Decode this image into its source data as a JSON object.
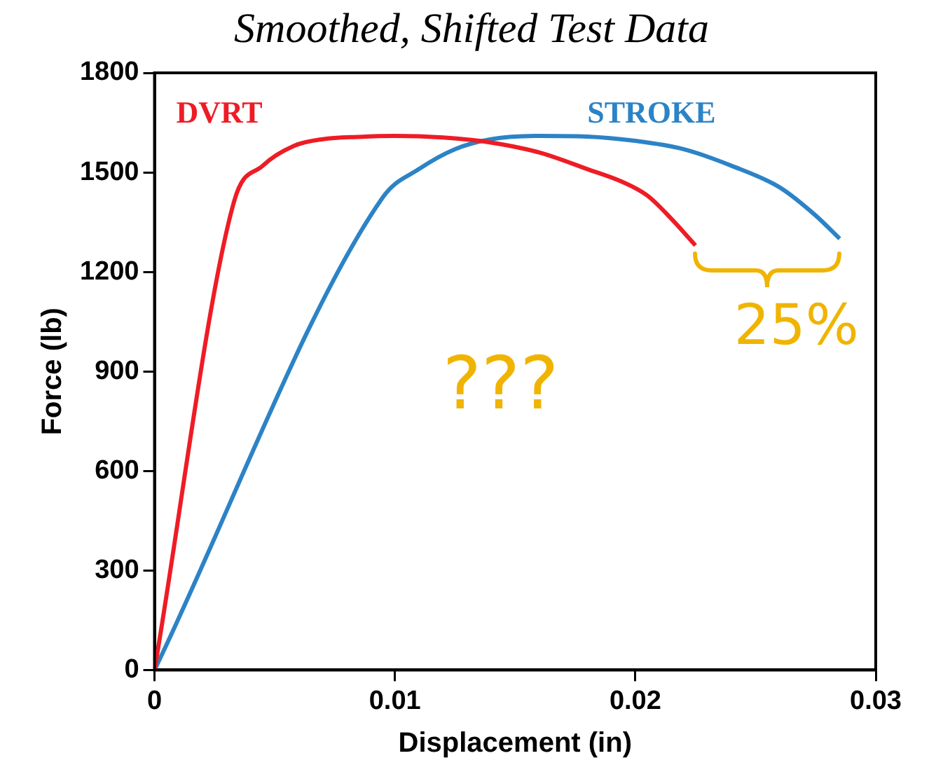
{
  "chart_data": {
    "type": "line",
    "title": "Smoothed, Shifted Test Data",
    "xlabel": "Displacement (in)",
    "ylabel": "Force (lb)",
    "xlim": [
      0,
      0.03
    ],
    "xticks": [
      0,
      0.01,
      0.02,
      0.03
    ],
    "ylim": [
      0,
      1800
    ],
    "yticks": [
      0,
      300,
      600,
      900,
      1200,
      1500,
      1800
    ],
    "grid": false,
    "legend": false,
    "marker": "none",
    "line_style": "solid",
    "series": [
      {
        "name": "DVRT",
        "color": "#ee1c25",
        "x": [
          0,
          0.0033,
          0.0045,
          0.0058,
          0.007,
          0.0085,
          0.01,
          0.012,
          0.014,
          0.016,
          0.018,
          0.0195,
          0.0205,
          0.0215,
          0.0225
        ],
        "values": [
          0,
          1410,
          1520,
          1580,
          1600,
          1607,
          1610,
          1605,
          1590,
          1560,
          1510,
          1470,
          1430,
          1360,
          1280
        ]
      },
      {
        "name": "STROKE",
        "color": "#2c83c6",
        "x": [
          0,
          0.0095,
          0.011,
          0.0125,
          0.014,
          0.016,
          0.018,
          0.02,
          0.022,
          0.024,
          0.026,
          0.0275,
          0.0285
        ],
        "values": [
          0,
          1425,
          1510,
          1570,
          1600,
          1610,
          1608,
          1595,
          1570,
          1520,
          1455,
          1370,
          1300
        ]
      }
    ],
    "annotations": [
      "???",
      "25%"
    ]
  }
}
